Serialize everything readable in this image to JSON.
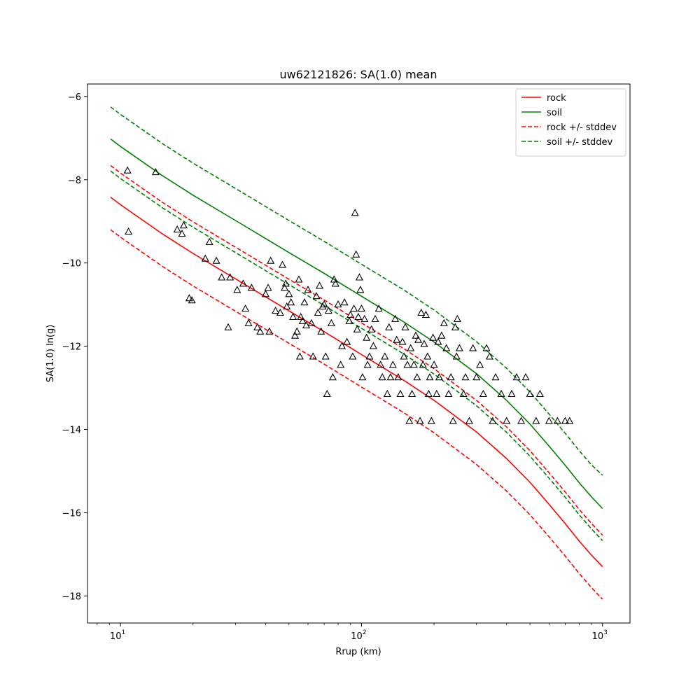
{
  "chart_data": {
    "type": "scatter",
    "title": "uw62121826: SA(1.0) mean",
    "xlabel": "Rrup (km)",
    "ylabel": "SA(1.0) ln(g)",
    "xscale": "log",
    "xlim": [
      7.3,
      1300
    ],
    "ylim": [
      -18.65,
      -5.7
    ],
    "grid": false,
    "legend_position": "top-right",
    "x_ticks": [
      {
        "value": 10,
        "base": "10",
        "exp": "1"
      },
      {
        "value": 100,
        "base": "10",
        "exp": "2"
      },
      {
        "value": 1000,
        "base": "10",
        "exp": "3"
      }
    ],
    "y_ticks": [
      {
        "value": -6,
        "label": "−6"
      },
      {
        "value": -8,
        "label": "−8"
      },
      {
        "value": -10,
        "label": "−10"
      },
      {
        "value": -12,
        "label": "−12"
      },
      {
        "value": -14,
        "label": "−14"
      },
      {
        "value": -16,
        "label": "−16"
      },
      {
        "value": -18,
        "label": "−18"
      }
    ],
    "colors": {
      "rock": "#ff0000",
      "soil": "#008000",
      "points": "#000000"
    },
    "series": [
      {
        "name": "rock",
        "style": "solid",
        "color": "#ff0000",
        "x": [
          9.1,
          10,
          15,
          20,
          30,
          50,
          70,
          100,
          150,
          200,
          300,
          400,
          500,
          600,
          700,
          800,
          900,
          1000
        ],
        "y": [
          -8.42,
          -8.6,
          -9.31,
          -9.77,
          -10.38,
          -11.15,
          -11.65,
          -12.2,
          -12.82,
          -13.3,
          -14.06,
          -14.7,
          -15.27,
          -15.8,
          -16.26,
          -16.68,
          -17.02,
          -17.3
        ]
      },
      {
        "name": "soil",
        "style": "solid",
        "color": "#008000",
        "x": [
          9.1,
          10,
          15,
          20,
          30,
          50,
          70,
          100,
          150,
          200,
          300,
          400,
          500,
          600,
          700,
          800,
          900,
          1000
        ],
        "y": [
          -7.02,
          -7.2,
          -7.91,
          -8.37,
          -8.98,
          -9.75,
          -10.25,
          -10.8,
          -11.42,
          -11.9,
          -12.66,
          -13.3,
          -13.87,
          -14.4,
          -14.86,
          -15.28,
          -15.62,
          -15.9
        ]
      },
      {
        "name": "rock +/- stddev",
        "style": "dashed",
        "color": "#ff0000",
        "x": [
          9.1,
          10,
          15,
          20,
          30,
          50,
          70,
          100,
          150,
          200,
          300,
          400,
          500,
          600,
          700,
          800,
          900,
          1000
        ],
        "y": [
          -7.66,
          -7.84,
          -8.55,
          -9.01,
          -9.62,
          -10.39,
          -10.89,
          -11.44,
          -12.06,
          -12.54,
          -13.3,
          -13.94,
          -14.51,
          -15.04,
          -15.5,
          -15.92,
          -16.26,
          -16.54
        ]
      },
      {
        "name": "",
        "style": "dashed",
        "color": "#ff0000",
        "legend": false,
        "x": [
          9.1,
          10,
          15,
          20,
          30,
          50,
          70,
          100,
          150,
          200,
          300,
          400,
          500,
          600,
          700,
          800,
          900,
          1000
        ],
        "y": [
          -9.2,
          -9.38,
          -10.09,
          -10.55,
          -11.16,
          -11.93,
          -12.43,
          -12.98,
          -13.6,
          -14.08,
          -14.84,
          -15.48,
          -16.05,
          -16.58,
          -17.04,
          -17.46,
          -17.8,
          -18.08
        ]
      },
      {
        "name": "soil +/- stddev",
        "style": "dashed",
        "color": "#008000",
        "x": [
          9.1,
          10,
          15,
          20,
          30,
          50,
          70,
          100,
          150,
          200,
          300,
          400,
          500,
          600,
          700,
          800,
          900,
          1000
        ],
        "y": [
          -6.25,
          -6.43,
          -7.14,
          -7.6,
          -8.21,
          -8.98,
          -9.48,
          -10.03,
          -10.65,
          -11.13,
          -11.89,
          -12.53,
          -13.1,
          -13.63,
          -14.09,
          -14.51,
          -14.85,
          -15.1
        ]
      },
      {
        "name": "",
        "style": "dashed",
        "color": "#008000",
        "legend": false,
        "x": [
          9.1,
          10,
          15,
          20,
          30,
          50,
          70,
          100,
          150,
          200,
          300,
          400,
          500,
          600,
          700,
          800,
          900,
          1000
        ],
        "y": [
          -7.79,
          -7.97,
          -8.68,
          -9.14,
          -9.75,
          -10.52,
          -11.02,
          -11.57,
          -12.19,
          -12.67,
          -13.43,
          -14.07,
          -14.64,
          -15.17,
          -15.63,
          -16.05,
          -16.39,
          -16.67
        ]
      }
    ],
    "points": [
      [
        10.7,
        -7.78
      ],
      [
        10.8,
        -9.25
      ],
      [
        14.0,
        -7.82
      ],
      [
        17.2,
        -9.2
      ],
      [
        18.0,
        -9.3
      ],
      [
        18.3,
        -9.1
      ],
      [
        19.3,
        -10.85
      ],
      [
        19.8,
        -10.9
      ],
      [
        22.5,
        -9.9
      ],
      [
        23.4,
        -9.5
      ],
      [
        25.0,
        -9.95
      ],
      [
        26.3,
        -10.35
      ],
      [
        28.0,
        -11.55
      ],
      [
        28.5,
        -10.35
      ],
      [
        30.5,
        -10.65
      ],
      [
        32.3,
        -10.5
      ],
      [
        33.0,
        -11.1
      ],
      [
        34.0,
        -11.45
      ],
      [
        35.0,
        -10.6
      ],
      [
        37.0,
        -11.55
      ],
      [
        38.0,
        -11.65
      ],
      [
        40.0,
        -10.75
      ],
      [
        41.0,
        -10.6
      ],
      [
        41.5,
        -11.65
      ],
      [
        42.0,
        -9.95
      ],
      [
        44.0,
        -11.15
      ],
      [
        46.0,
        -11.2
      ],
      [
        47.0,
        -10.05
      ],
      [
        48.0,
        -10.6
      ],
      [
        48.5,
        -10.5
      ],
      [
        49.0,
        -11.05
      ],
      [
        50.0,
        -10.75
      ],
      [
        51.0,
        -10.95
      ],
      [
        52.0,
        -11.3
      ],
      [
        53.0,
        -11.75
      ],
      [
        54.0,
        -11.65
      ],
      [
        55.0,
        -10.4
      ],
      [
        55.5,
        -12.25
      ],
      [
        56.0,
        -11.3
      ],
      [
        57.0,
        -11.4
      ],
      [
        58.0,
        -10.95
      ],
      [
        59.0,
        -11.5
      ],
      [
        60.0,
        -10.65
      ],
      [
        62.0,
        -11.45
      ],
      [
        63.0,
        -12.25
      ],
      [
        65.0,
        -10.8
      ],
      [
        66.0,
        -11.2
      ],
      [
        67.0,
        -10.55
      ],
      [
        68.0,
        -11.65
      ],
      [
        69.0,
        -11.05
      ],
      [
        70.0,
        -11.0
      ],
      [
        71.0,
        -12.25
      ],
      [
        72.0,
        -13.15
      ],
      [
        73.0,
        -11.15
      ],
      [
        75.0,
        -11.45
      ],
      [
        76.0,
        -12.75
      ],
      [
        77.0,
        -10.4
      ],
      [
        78.0,
        -10.5
      ],
      [
        80.0,
        -11.0
      ],
      [
        82.0,
        -12.45
      ],
      [
        83.0,
        -12.0
      ],
      [
        85.0,
        -10.95
      ],
      [
        87.0,
        -11.9
      ],
      [
        89.0,
        -11.4
      ],
      [
        90.0,
        -11.25
      ],
      [
        92.0,
        -12.25
      ],
      [
        93.0,
        -11.1
      ],
      [
        94.0,
        -8.8
      ],
      [
        95.0,
        -9.8
      ],
      [
        96.0,
        -11.6
      ],
      [
        97.0,
        -11.3
      ],
      [
        98.0,
        -10.35
      ],
      [
        99.0,
        -10.65
      ],
      [
        100.0,
        -11.1
      ],
      [
        101.0,
        -12.75
      ],
      [
        103.0,
        -11.35
      ],
      [
        105.0,
        -11.8
      ],
      [
        106.0,
        -12.45
      ],
      [
        108.0,
        -12.25
      ],
      [
        110.0,
        -11.6
      ],
      [
        112.0,
        -12.0
      ],
      [
        114.0,
        -11.35
      ],
      [
        118.0,
        -11.1
      ],
      [
        120.0,
        -12.45
      ],
      [
        122.0,
        -12.75
      ],
      [
        125.0,
        -12.25
      ],
      [
        128.0,
        -13.15
      ],
      [
        130.0,
        -11.55
      ],
      [
        132.0,
        -12.75
      ],
      [
        135.0,
        -12.45
      ],
      [
        138.0,
        -11.35
      ],
      [
        140.0,
        -11.85
      ],
      [
        142.0,
        -12.75
      ],
      [
        145.0,
        -13.15
      ],
      [
        148.0,
        -11.9
      ],
      [
        150.0,
        -12.25
      ],
      [
        152.0,
        -11.55
      ],
      [
        155.0,
        -12.45
      ],
      [
        158.0,
        -13.8
      ],
      [
        160.0,
        -12.05
      ],
      [
        162.0,
        -13.15
      ],
      [
        165.0,
        -12.45
      ],
      [
        168.0,
        -11.75
      ],
      [
        170.0,
        -12.75
      ],
      [
        172.0,
        -11.85
      ],
      [
        175.0,
        -13.8
      ],
      [
        177.0,
        -11.2
      ],
      [
        180.0,
        -12.45
      ],
      [
        182.0,
        -11.95
      ],
      [
        185.0,
        -11.25
      ],
      [
        188.0,
        -12.25
      ],
      [
        190.0,
        -13.15
      ],
      [
        192.0,
        -12.75
      ],
      [
        195.0,
        -13.8
      ],
      [
        198.0,
        -11.8
      ],
      [
        200.0,
        -12.45
      ],
      [
        205.0,
        -13.15
      ],
      [
        208.0,
        -11.9
      ],
      [
        210.0,
        -12.75
      ],
      [
        215.0,
        -11.75
      ],
      [
        220.0,
        -11.45
      ],
      [
        225.0,
        -12.05
      ],
      [
        230.0,
        -13.15
      ],
      [
        235.0,
        -12.75
      ],
      [
        240.0,
        -13.8
      ],
      [
        245.0,
        -11.55
      ],
      [
        248.0,
        -12.25
      ],
      [
        250.0,
        -11.35
      ],
      [
        255.0,
        -12.05
      ],
      [
        265.0,
        -13.15
      ],
      [
        270.0,
        -12.75
      ],
      [
        280.0,
        -13.8
      ],
      [
        290.0,
        -12.05
      ],
      [
        300.0,
        -12.75
      ],
      [
        310.0,
        -12.45
      ],
      [
        320.0,
        -13.15
      ],
      [
        330.0,
        -12.05
      ],
      [
        340.0,
        -12.25
      ],
      [
        350.0,
        -13.8
      ],
      [
        360.0,
        -12.75
      ],
      [
        380.0,
        -13.15
      ],
      [
        400.0,
        -13.8
      ],
      [
        420.0,
        -13.15
      ],
      [
        440.0,
        -12.75
      ],
      [
        460.0,
        -13.8
      ],
      [
        480.0,
        -12.75
      ],
      [
        500.0,
        -13.15
      ],
      [
        530.0,
        -13.8
      ],
      [
        550.0,
        -13.15
      ],
      [
        600.0,
        -13.8
      ],
      [
        650.0,
        -13.8
      ],
      [
        700.0,
        -13.8
      ],
      [
        730.0,
        -13.8
      ]
    ]
  }
}
